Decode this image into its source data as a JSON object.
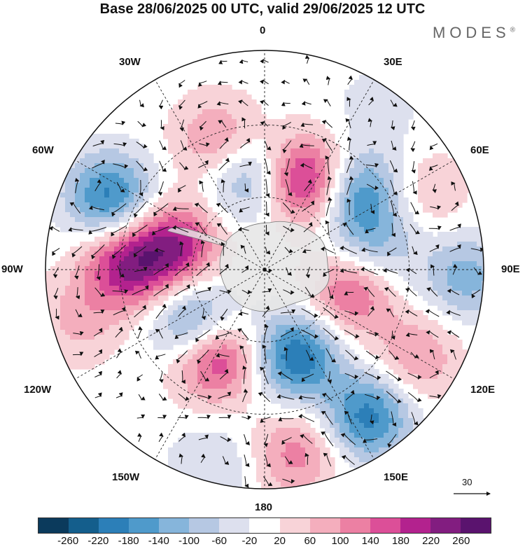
{
  "title": "Base 28/06/2025 00 UTC, valid 29/06/2025 12 UTC",
  "brand": {
    "name": "MODES",
    "mark": "®"
  },
  "longitude_labels": {
    "top": "0",
    "bottom": "180",
    "left": "90W",
    "right": "90E",
    "upper_left_1": "30W",
    "upper_left_2": "60W",
    "upper_right_1": "30E",
    "upper_right_2": "60E",
    "lower_left_1": "120W",
    "lower_left_2": "150W",
    "lower_right_1": "120E",
    "lower_right_2": "150E"
  },
  "vector_reference": {
    "label": "30"
  },
  "colorbar": {
    "ticks": [
      "-260",
      "-220",
      "-180",
      "-140",
      "-100",
      "-60",
      "-20",
      "20",
      "60",
      "100",
      "140",
      "180",
      "220",
      "260"
    ],
    "colors": [
      "#0b3a5c",
      "#145e8c",
      "#2c7fb8",
      "#4f9acb",
      "#86b5db",
      "#b6c8e3",
      "#dde0ee",
      "#ffffff",
      "#f8d3d8",
      "#f4aebd",
      "#ec80a3",
      "#dc4f98",
      "#b3228e",
      "#821d80",
      "#5a136e"
    ]
  },
  "anomaly_centers": [
    {
      "lon": -20,
      "colat": 0.62,
      "value": 120
    },
    {
      "lon": 25,
      "colat": 0.45,
      "value": 240
    },
    {
      "lon": 50,
      "colat": 0.55,
      "value": -180
    },
    {
      "lon": -10,
      "colat": 0.43,
      "value": -140
    },
    {
      "lon": -65,
      "colat": 0.78,
      "value": -200
    },
    {
      "lon": -75,
      "colat": 0.42,
      "value": 200
    },
    {
      "lon": -88,
      "colat": 0.63,
      "value": 210
    },
    {
      "lon": -130,
      "colat": 0.4,
      "value": -200
    },
    {
      "lon": -150,
      "colat": 0.45,
      "value": 240
    },
    {
      "lon": 160,
      "colat": 0.42,
      "value": -220
    },
    {
      "lon": 170,
      "colat": 0.85,
      "value": 120
    },
    {
      "lon": 145,
      "colat": 0.82,
      "value": -200
    },
    {
      "lon": 120,
      "colat": 0.8,
      "value": 100
    },
    {
      "lon": 110,
      "colat": 0.4,
      "value": 80
    },
    {
      "lon": 95,
      "colat": 0.43,
      "value": 110
    },
    {
      "lon": 80,
      "colat": 0.5,
      "value": -140
    },
    {
      "lon": 92,
      "colat": 0.92,
      "value": -120
    },
    {
      "lon": 65,
      "colat": 0.82,
      "value": 60
    },
    {
      "lon": -105,
      "colat": 0.88,
      "value": 70
    },
    {
      "lon": -165,
      "colat": 0.92,
      "value": -60
    },
    {
      "lon": 35,
      "colat": 0.9,
      "value": -40
    }
  ],
  "antarctica_color": "#e6e6e6"
}
